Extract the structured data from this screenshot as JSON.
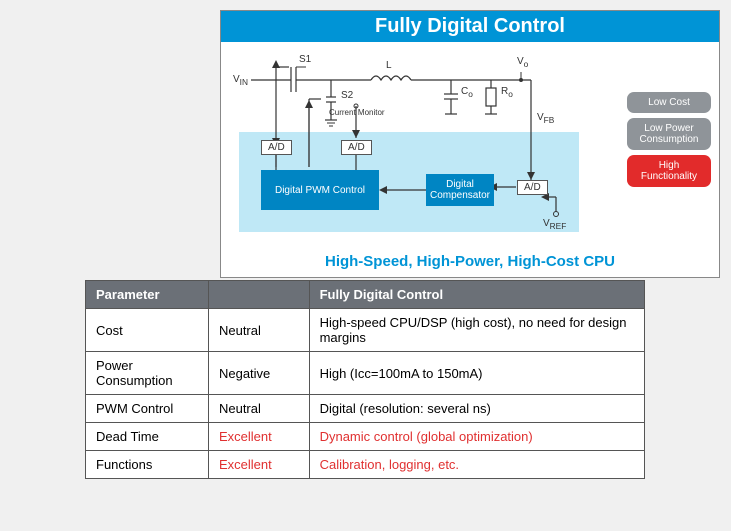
{
  "panel": {
    "title": "Fully Digital Control",
    "subtitle": "High-Speed, High-Power, High-Cost CPU",
    "header_bg": "#0094d6",
    "dsp_region_bg": "#bfe8f6",
    "block_fill": "#0085c3",
    "badges": [
      {
        "label": "Low Cost",
        "bg": "#8f9499"
      },
      {
        "label": "Low Power Consumption",
        "bg": "#8f9499"
      },
      {
        "label": "High Functionality",
        "bg": "#e22b2b"
      }
    ],
    "schematic": {
      "labels": {
        "vin": "V",
        "vin_sub": "IN",
        "s1": "S1",
        "s2": "S2",
        "L": "L",
        "Co": "C",
        "Co_sub": "o",
        "Ro": "R",
        "Ro_sub": "o",
        "Vo": "V",
        "Vo_sub": "o",
        "vfb": "V",
        "vfb_sub": "FB",
        "vref": "V",
        "vref_sub": "REF",
        "cm": "Current Monitor"
      },
      "ad_label": "A/D",
      "pwm_block": "Digital PWM Control",
      "comp_block": "Digital Compensator"
    }
  },
  "table": {
    "headers": [
      "Parameter",
      "",
      "Fully Digital Control"
    ],
    "col_widths": [
      "22%",
      "18%",
      "60%"
    ],
    "accent_color": "#e03030",
    "rows": [
      {
        "param": "Cost",
        "rating": "Neutral",
        "detail": "High-speed CPU/DSP (high cost), no need for design margins",
        "accent": false
      },
      {
        "param": "Power Consumption",
        "rating": "Negative",
        "detail": "High (Icc=100mA to 150mA)",
        "accent": false
      },
      {
        "param": "PWM Control",
        "rating": "Neutral",
        "detail": "Digital (resolution: several ns)",
        "accent": false
      },
      {
        "param": "Dead Time",
        "rating": "Excellent",
        "detail": "Dynamic control (global optimization)",
        "accent": true
      },
      {
        "param": "Functions",
        "rating": "Excellent",
        "detail": "Calibration, logging, etc.",
        "accent": true
      }
    ]
  }
}
